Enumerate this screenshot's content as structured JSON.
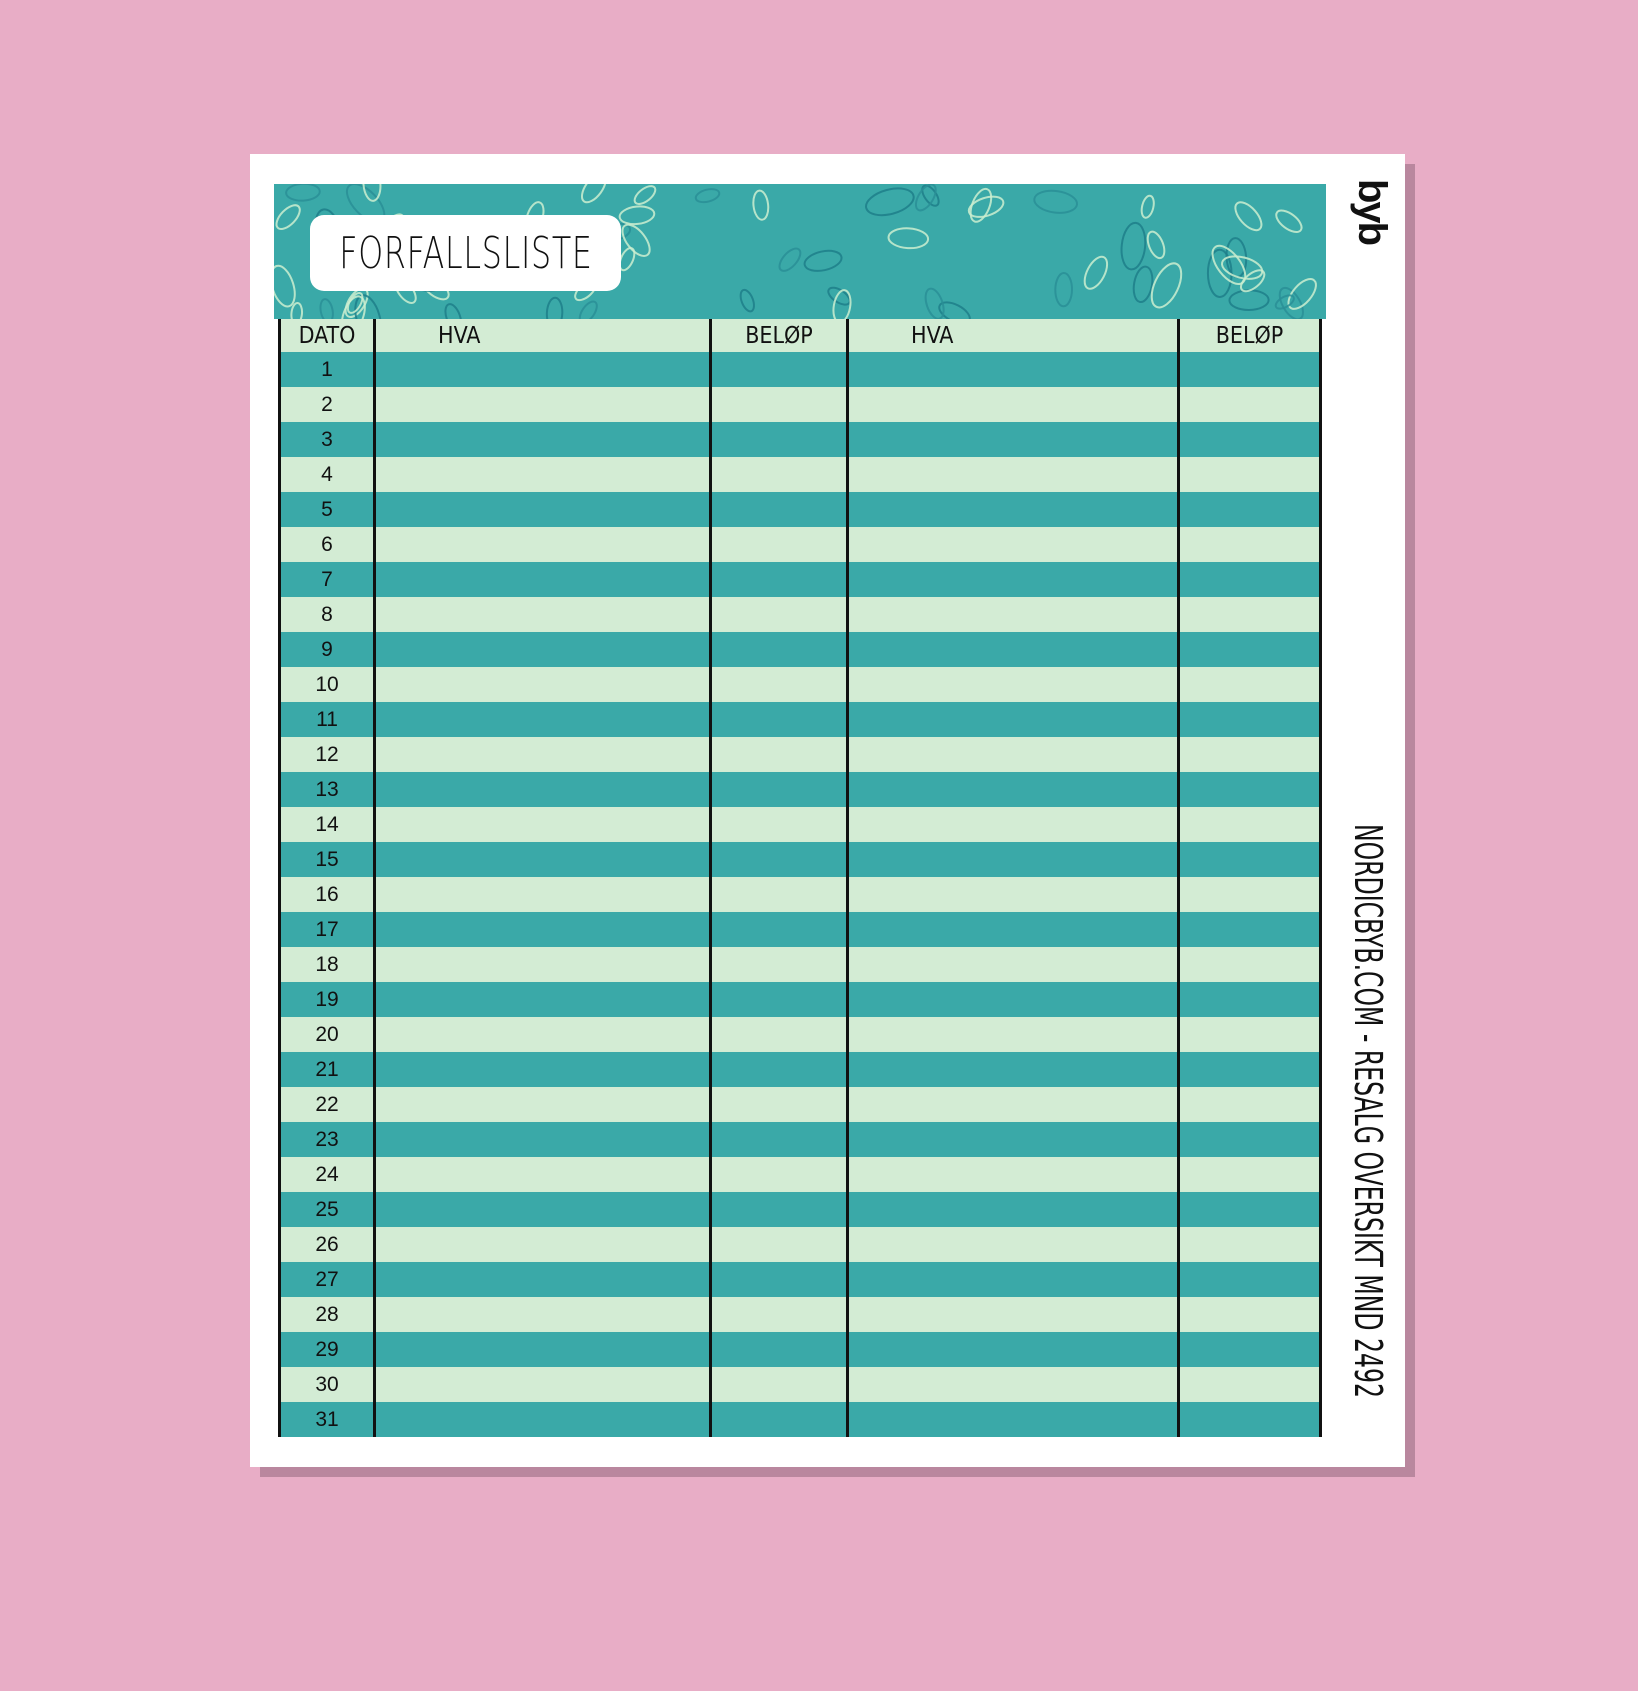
{
  "title": "FORFALLSLISTE",
  "logo_text": "byb",
  "side_text": "NORDICBYB.COM - RESALG OVERSIKT MND 2492",
  "columns": [
    "DATO",
    "HVA",
    "BELØP",
    "HVA",
    "BELØP"
  ],
  "rows": [
    "1",
    "2",
    "3",
    "4",
    "5",
    "6",
    "7",
    "8",
    "9",
    "10",
    "11",
    "12",
    "13",
    "14",
    "15",
    "16",
    "17",
    "18",
    "19",
    "20",
    "21",
    "22",
    "23",
    "24",
    "25",
    "26",
    "27",
    "28",
    "29",
    "30",
    "31"
  ],
  "colors": {
    "background": "#e8adc6",
    "teal": "#3aa9a8",
    "light_green": "#d3ecd4",
    "shadow": "#b9879e"
  }
}
